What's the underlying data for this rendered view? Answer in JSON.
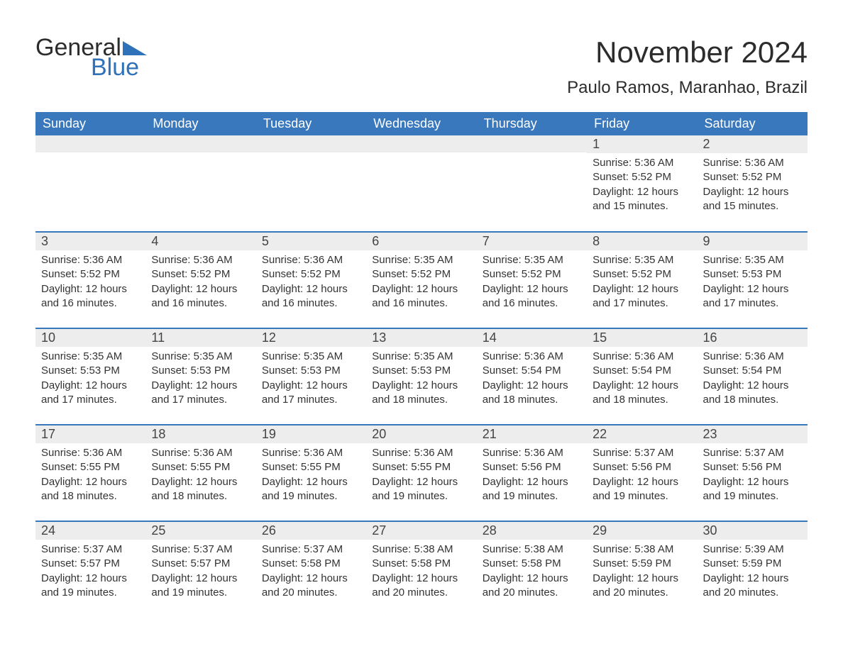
{
  "colors": {
    "header_bg": "#3a78bd",
    "header_text": "#ffffff",
    "daynum_bg": "#ededed",
    "logo_blue": "#2f72b9",
    "text": "#333333",
    "row_divider": "#3a78bd"
  },
  "logo": {
    "word1": "General",
    "word2": "Blue"
  },
  "title": "November 2024",
  "location": "Paulo Ramos, Maranhao, Brazil",
  "weekday_labels": [
    "Sunday",
    "Monday",
    "Tuesday",
    "Wednesday",
    "Thursday",
    "Friday",
    "Saturday"
  ],
  "labels": {
    "sunrise": "Sunrise:",
    "sunset": "Sunset:",
    "daylight": "Daylight:"
  },
  "calendar": {
    "type": "table",
    "columns": 7,
    "weeks": [
      [
        null,
        null,
        null,
        null,
        null,
        {
          "day": "1",
          "sunrise": "5:36 AM",
          "sunset": "5:52 PM",
          "daylight": "12 hours and 15 minutes."
        },
        {
          "day": "2",
          "sunrise": "5:36 AM",
          "sunset": "5:52 PM",
          "daylight": "12 hours and 15 minutes."
        }
      ],
      [
        {
          "day": "3",
          "sunrise": "5:36 AM",
          "sunset": "5:52 PM",
          "daylight": "12 hours and 16 minutes."
        },
        {
          "day": "4",
          "sunrise": "5:36 AM",
          "sunset": "5:52 PM",
          "daylight": "12 hours and 16 minutes."
        },
        {
          "day": "5",
          "sunrise": "5:36 AM",
          "sunset": "5:52 PM",
          "daylight": "12 hours and 16 minutes."
        },
        {
          "day": "6",
          "sunrise": "5:35 AM",
          "sunset": "5:52 PM",
          "daylight": "12 hours and 16 minutes."
        },
        {
          "day": "7",
          "sunrise": "5:35 AM",
          "sunset": "5:52 PM",
          "daylight": "12 hours and 16 minutes."
        },
        {
          "day": "8",
          "sunrise": "5:35 AM",
          "sunset": "5:52 PM",
          "daylight": "12 hours and 17 minutes."
        },
        {
          "day": "9",
          "sunrise": "5:35 AM",
          "sunset": "5:53 PM",
          "daylight": "12 hours and 17 minutes."
        }
      ],
      [
        {
          "day": "10",
          "sunrise": "5:35 AM",
          "sunset": "5:53 PM",
          "daylight": "12 hours and 17 minutes."
        },
        {
          "day": "11",
          "sunrise": "5:35 AM",
          "sunset": "5:53 PM",
          "daylight": "12 hours and 17 minutes."
        },
        {
          "day": "12",
          "sunrise": "5:35 AM",
          "sunset": "5:53 PM",
          "daylight": "12 hours and 17 minutes."
        },
        {
          "day": "13",
          "sunrise": "5:35 AM",
          "sunset": "5:53 PM",
          "daylight": "12 hours and 18 minutes."
        },
        {
          "day": "14",
          "sunrise": "5:36 AM",
          "sunset": "5:54 PM",
          "daylight": "12 hours and 18 minutes."
        },
        {
          "day": "15",
          "sunrise": "5:36 AM",
          "sunset": "5:54 PM",
          "daylight": "12 hours and 18 minutes."
        },
        {
          "day": "16",
          "sunrise": "5:36 AM",
          "sunset": "5:54 PM",
          "daylight": "12 hours and 18 minutes."
        }
      ],
      [
        {
          "day": "17",
          "sunrise": "5:36 AM",
          "sunset": "5:55 PM",
          "daylight": "12 hours and 18 minutes."
        },
        {
          "day": "18",
          "sunrise": "5:36 AM",
          "sunset": "5:55 PM",
          "daylight": "12 hours and 18 minutes."
        },
        {
          "day": "19",
          "sunrise": "5:36 AM",
          "sunset": "5:55 PM",
          "daylight": "12 hours and 19 minutes."
        },
        {
          "day": "20",
          "sunrise": "5:36 AM",
          "sunset": "5:55 PM",
          "daylight": "12 hours and 19 minutes."
        },
        {
          "day": "21",
          "sunrise": "5:36 AM",
          "sunset": "5:56 PM",
          "daylight": "12 hours and 19 minutes."
        },
        {
          "day": "22",
          "sunrise": "5:37 AM",
          "sunset": "5:56 PM",
          "daylight": "12 hours and 19 minutes."
        },
        {
          "day": "23",
          "sunrise": "5:37 AM",
          "sunset": "5:56 PM",
          "daylight": "12 hours and 19 minutes."
        }
      ],
      [
        {
          "day": "24",
          "sunrise": "5:37 AM",
          "sunset": "5:57 PM",
          "daylight": "12 hours and 19 minutes."
        },
        {
          "day": "25",
          "sunrise": "5:37 AM",
          "sunset": "5:57 PM",
          "daylight": "12 hours and 19 minutes."
        },
        {
          "day": "26",
          "sunrise": "5:37 AM",
          "sunset": "5:58 PM",
          "daylight": "12 hours and 20 minutes."
        },
        {
          "day": "27",
          "sunrise": "5:38 AM",
          "sunset": "5:58 PM",
          "daylight": "12 hours and 20 minutes."
        },
        {
          "day": "28",
          "sunrise": "5:38 AM",
          "sunset": "5:58 PM",
          "daylight": "12 hours and 20 minutes."
        },
        {
          "day": "29",
          "sunrise": "5:38 AM",
          "sunset": "5:59 PM",
          "daylight": "12 hours and 20 minutes."
        },
        {
          "day": "30",
          "sunrise": "5:39 AM",
          "sunset": "5:59 PM",
          "daylight": "12 hours and 20 minutes."
        }
      ]
    ]
  }
}
